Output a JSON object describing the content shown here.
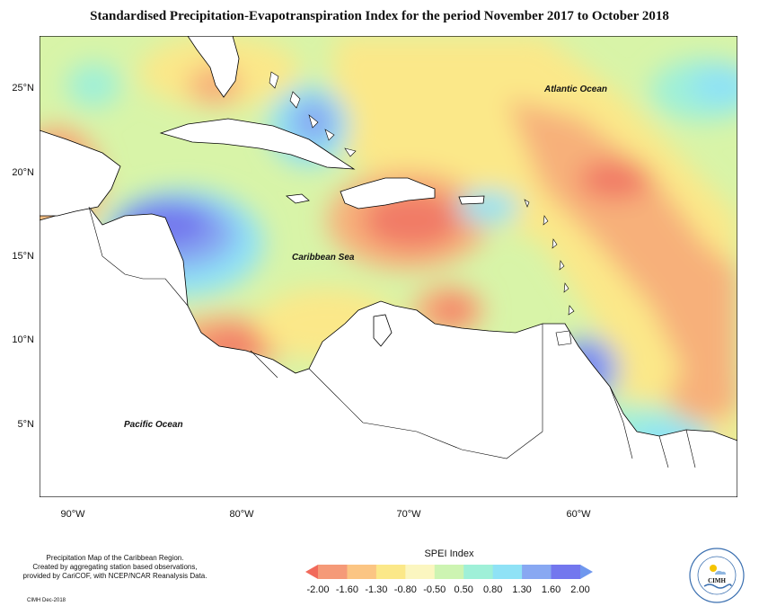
{
  "title": "Standardised Precipitation-Evapotranspiration Index for the period November 2017 to October 2018",
  "labels": {
    "atlantic": "Atlantic Ocean",
    "caribbean": "Caribbean Sea",
    "pacific": "Pacific Ocean"
  },
  "lat_ticks": [
    "25°N",
    "20°N",
    "15°N",
    "10°N",
    "5°N"
  ],
  "lon_ticks": [
    "90°W",
    "80°W",
    "70°W",
    "60°W"
  ],
  "footer": {
    "line1": "Precipitation Map of the Caribbean Region.",
    "line2": "Created by aggregating station based observations,",
    "line3": "provided by CariCOF, with NCEP/NCAR Reanalysis Data.",
    "credit": "CIMH Dec-2018"
  },
  "legend": {
    "title": "SPEI Index",
    "ticks": [
      "-2.00",
      "-1.60",
      "-1.30",
      "-0.80",
      "-0.50",
      "0.50",
      "0.80",
      "1.30",
      "1.60",
      "2.00"
    ],
    "colors": [
      "#f16a5b",
      "#f59a78",
      "#fbc583",
      "#fbe889",
      "#fbf6c0",
      "#cdf4b2",
      "#9ff0d8",
      "#8fe2f6",
      "#88a8f2",
      "#7377ee",
      "#6f97ee"
    ]
  },
  "logo": {
    "text": "CIMH"
  }
}
